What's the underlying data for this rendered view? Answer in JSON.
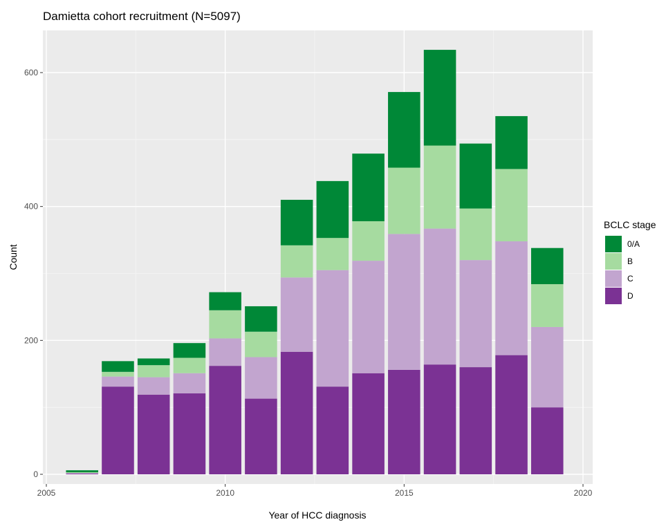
{
  "chart_data": {
    "type": "bar",
    "stacked": true,
    "title": "Damietta cohort recruitment (N=5097)",
    "xlabel": "Year of HCC diagnosis",
    "ylabel": "Count",
    "xlim": [
      2005,
      2020
    ],
    "ylim": [
      0,
      650
    ],
    "x_ticks": [
      "2005",
      "2010",
      "2015",
      "2020"
    ],
    "y_ticks": [
      "0",
      "200",
      "400",
      "600"
    ],
    "legend": {
      "title": "BCLC stage",
      "position": "right"
    },
    "grid": true,
    "categories": [
      2006,
      2007,
      2008,
      2009,
      2010,
      2011,
      2012,
      2013,
      2014,
      2015,
      2016,
      2017,
      2018,
      2019
    ],
    "series": [
      {
        "name": "D",
        "color": "#7b3294",
        "values": [
          1,
          131,
          119,
          121,
          162,
          113,
          183,
          131,
          151,
          156,
          164,
          160,
          178,
          100
        ]
      },
      {
        "name": "C",
        "color": "#c2a5cf",
        "values": [
          1,
          15,
          26,
          30,
          41,
          62,
          111,
          174,
          168,
          203,
          203,
          160,
          170,
          120
        ]
      },
      {
        "name": "B",
        "color": "#a6dba0",
        "values": [
          1,
          7,
          18,
          23,
          42,
          38,
          48,
          48,
          59,
          99,
          124,
          77,
          108,
          64
        ]
      },
      {
        "name": "0/A",
        "color": "#008837",
        "values": [
          3,
          16,
          10,
          22,
          27,
          38,
          68,
          85,
          101,
          113,
          143,
          97,
          79,
          54
        ]
      }
    ]
  }
}
